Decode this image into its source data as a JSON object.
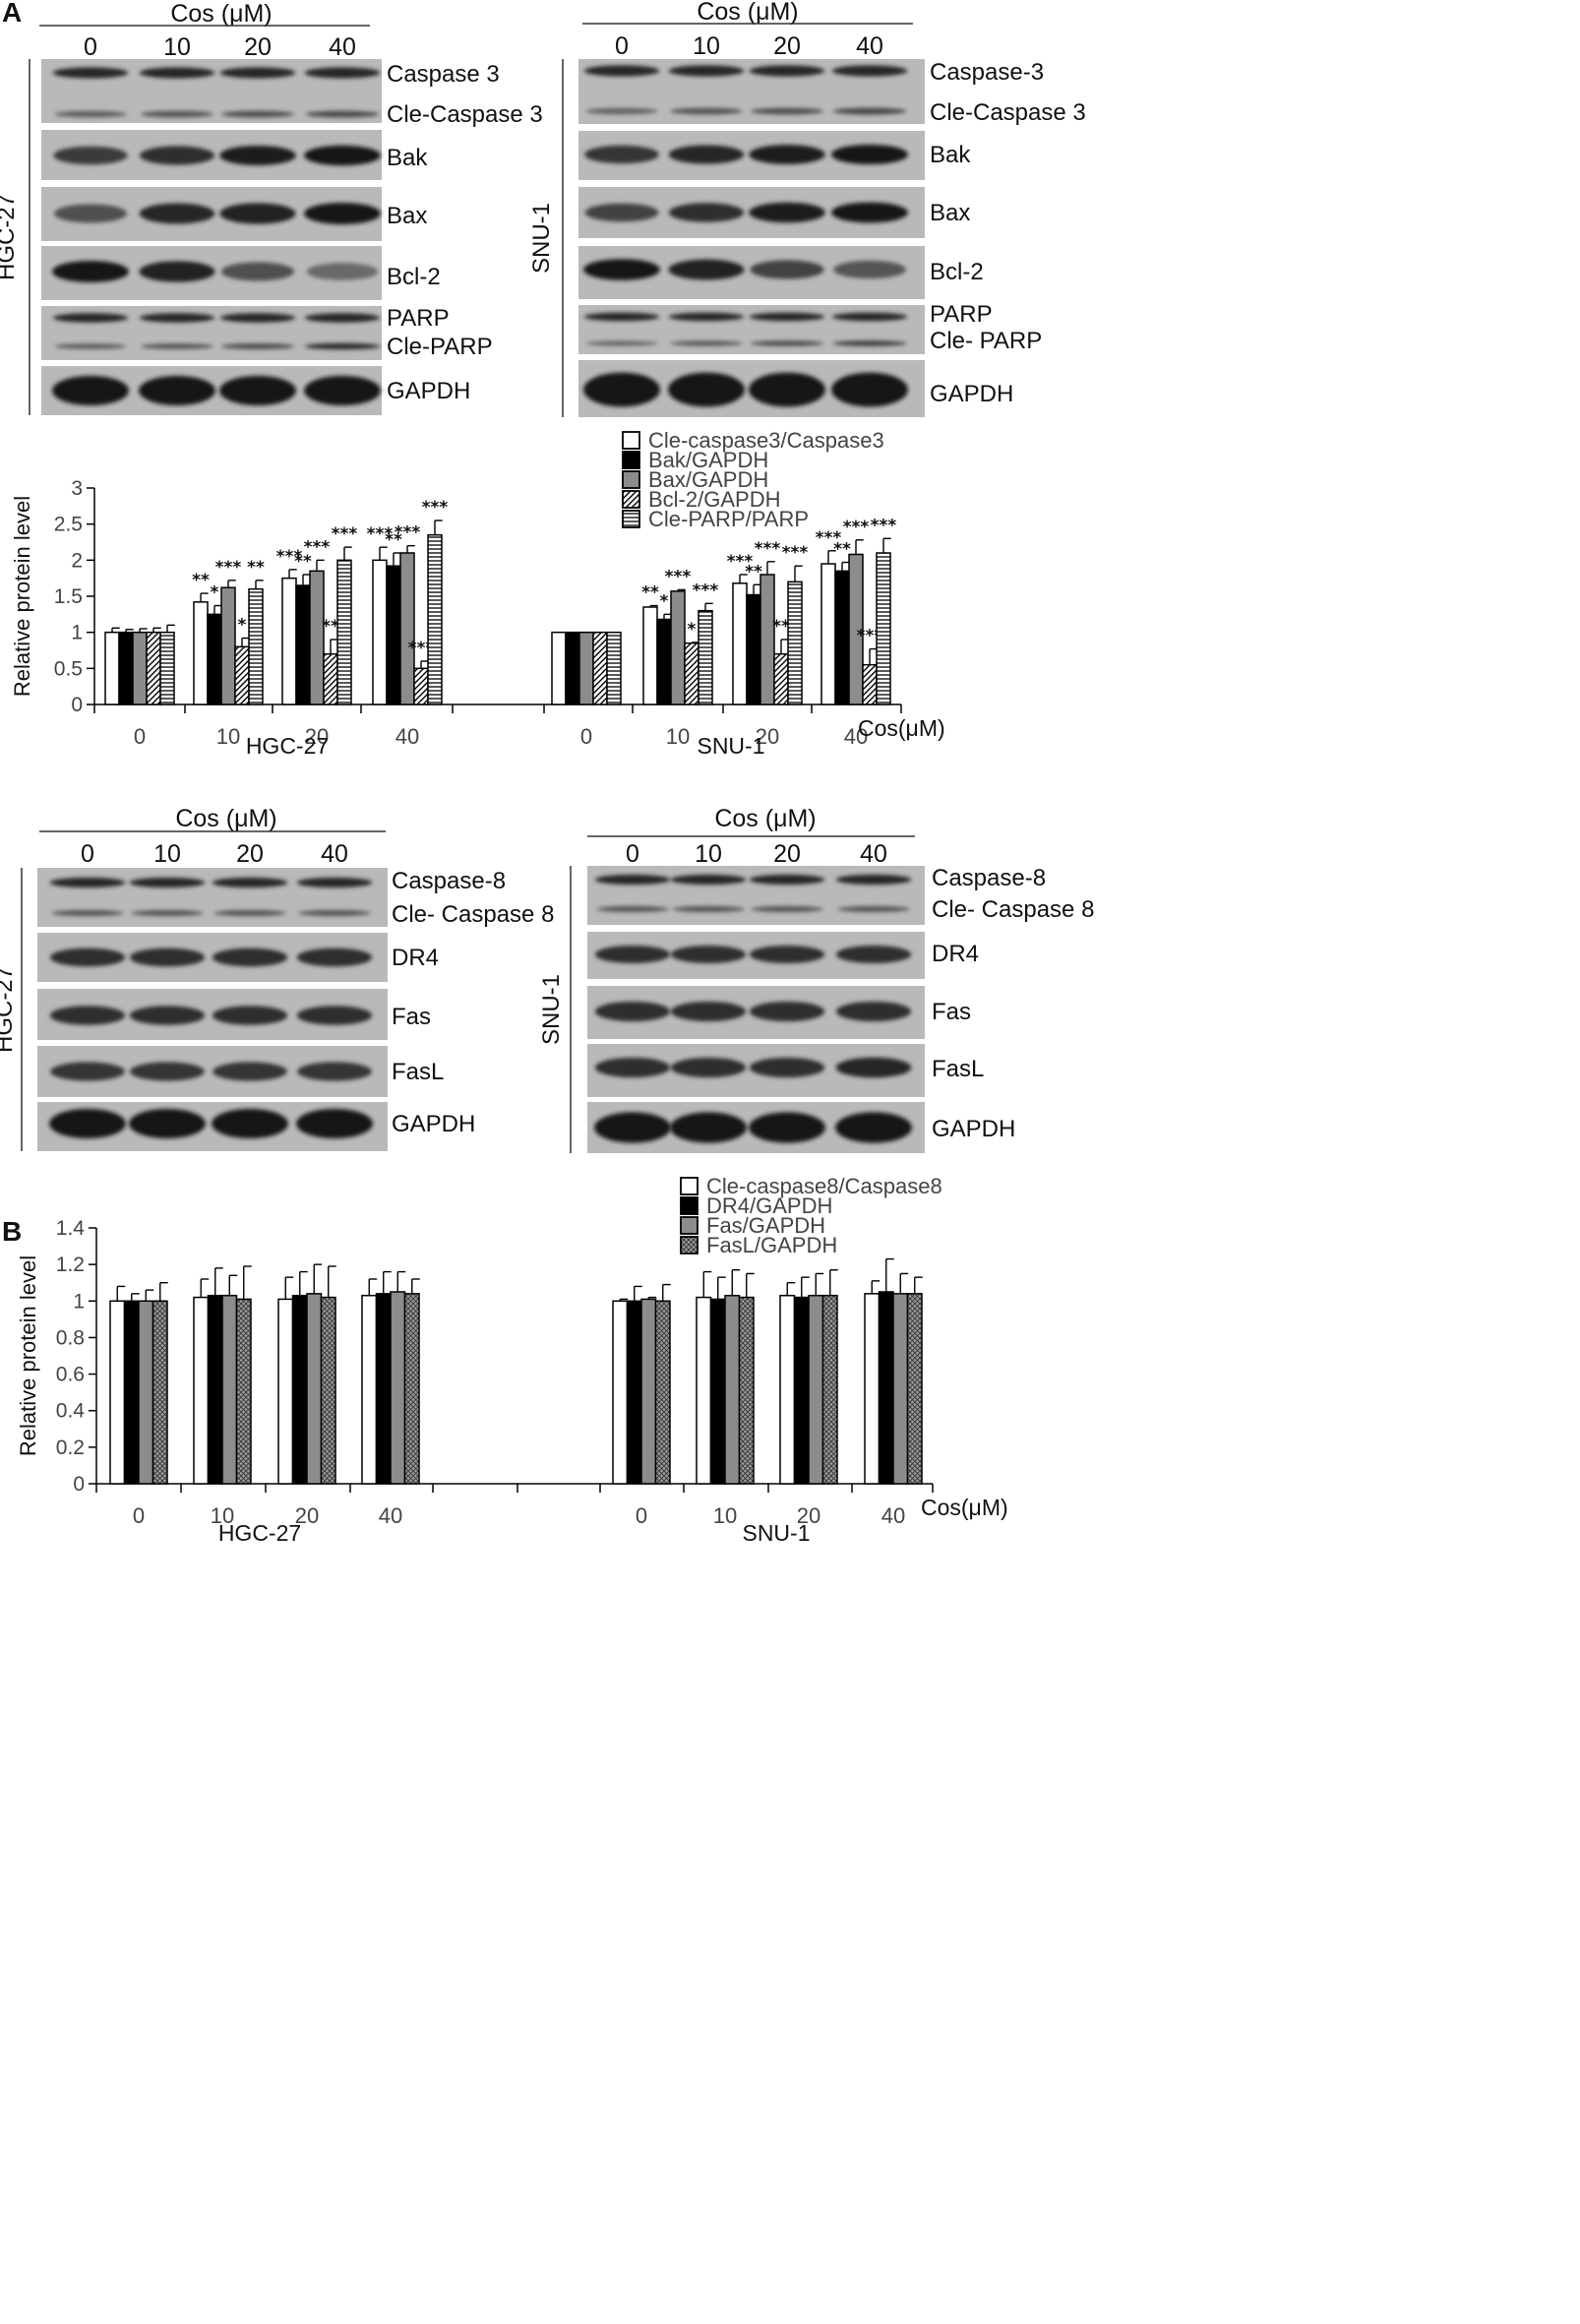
{
  "figure": {
    "panel_a_letter": "A",
    "panel_b_letter": "B"
  },
  "panel_a": {
    "blot_left": {
      "header": "Cos  (μM)",
      "doses": [
        "0",
        "10",
        "20",
        "40"
      ],
      "cell_line": "HGC-27",
      "rows": [
        {
          "labels": [
            "Caspase 3",
            "Cle-Caspase 3"
          ],
          "bands": [
            [
              0.85,
              0.85,
              0.85,
              0.85
            ],
            [
              0.45,
              0.5,
              0.55,
              0.6
            ]
          ]
        },
        {
          "labels": [
            "Bak"
          ],
          "bands": [
            [
              0.7,
              0.8,
              0.95,
              1.0
            ]
          ]
        },
        {
          "labels": [
            "Bax"
          ],
          "bands": [
            [
              0.55,
              0.85,
              0.9,
              1.0
            ]
          ]
        },
        {
          "labels": [
            "Bcl-2"
          ],
          "bands": [
            [
              1.0,
              0.9,
              0.55,
              0.35
            ]
          ]
        },
        {
          "labels": [
            "PARP",
            "Cle-PARP"
          ],
          "bands": [
            [
              0.85,
              0.85,
              0.85,
              0.85
            ],
            [
              0.45,
              0.5,
              0.6,
              0.85
            ]
          ]
        },
        {
          "labels": [
            "GAPDH"
          ],
          "bands": [
            [
              1.0,
              1.0,
              1.0,
              1.0
            ]
          ]
        }
      ]
    },
    "blot_right": {
      "header": "Cos  (μM)",
      "doses": [
        "0",
        "10",
        "20",
        "40"
      ],
      "cell_line": "SNU-1",
      "rows": [
        {
          "labels": [
            "Caspase-3",
            "Cle-Caspase 3"
          ],
          "bands": [
            [
              0.85,
              0.85,
              0.85,
              0.85
            ],
            [
              0.4,
              0.5,
              0.55,
              0.6
            ]
          ]
        },
        {
          "labels": [
            "Bak"
          ],
          "bands": [
            [
              0.75,
              0.85,
              0.95,
              1.0
            ]
          ]
        },
        {
          "labels": [
            "Bax"
          ],
          "bands": [
            [
              0.65,
              0.8,
              0.95,
              1.0
            ]
          ]
        },
        {
          "labels": [
            "Bcl-2"
          ],
          "bands": [
            [
              1.0,
              0.9,
              0.65,
              0.5
            ]
          ]
        },
        {
          "labels": [
            "PARP",
            "Cle- PARP"
          ],
          "bands": [
            [
              0.85,
              0.85,
              0.85,
              0.85
            ],
            [
              0.4,
              0.5,
              0.6,
              0.7
            ]
          ]
        },
        {
          "labels": [
            "GAPDH"
          ],
          "bands": [
            [
              1.0,
              1.0,
              1.0,
              1.0
            ]
          ]
        }
      ]
    }
  },
  "panel_b": {
    "blot_left": {
      "header": "Cos  (μM)",
      "doses": [
        "0",
        "10",
        "20",
        "40"
      ],
      "cell_line": "HGC-27",
      "rows": [
        {
          "labels": [
            "Caspase-8",
            "Cle- Caspase 8"
          ],
          "bands": [
            [
              0.85,
              0.85,
              0.85,
              0.85
            ],
            [
              0.5,
              0.5,
              0.5,
              0.5
            ]
          ]
        },
        {
          "labels": [
            "DR4"
          ],
          "bands": [
            [
              0.8,
              0.8,
              0.8,
              0.8
            ]
          ]
        },
        {
          "labels": [
            "Fas"
          ],
          "bands": [
            [
              0.8,
              0.8,
              0.8,
              0.8
            ]
          ]
        },
        {
          "labels": [
            "FasL"
          ],
          "bands": [
            [
              0.75,
              0.75,
              0.75,
              0.75
            ]
          ]
        },
        {
          "labels": [
            "GAPDH"
          ],
          "bands": [
            [
              1.0,
              1.0,
              1.0,
              1.0
            ]
          ]
        }
      ]
    },
    "blot_right": {
      "header": "Cos (μM)",
      "doses": [
        "0",
        "10",
        "20",
        "40"
      ],
      "cell_line": "SNU-1",
      "rows": [
        {
          "labels": [
            "Caspase-8",
            "Cle- Caspase 8"
          ],
          "bands": [
            [
              0.85,
              0.85,
              0.85,
              0.85
            ],
            [
              0.5,
              0.5,
              0.5,
              0.5
            ]
          ]
        },
        {
          "labels": [
            "DR4"
          ],
          "bands": [
            [
              0.8,
              0.8,
              0.8,
              0.8
            ]
          ]
        },
        {
          "labels": [
            "Fas"
          ],
          "bands": [
            [
              0.8,
              0.8,
              0.8,
              0.8
            ]
          ]
        },
        {
          "labels": [
            "FasL"
          ],
          "bands": [
            [
              0.8,
              0.8,
              0.8,
              0.85
            ]
          ]
        },
        {
          "labels": [
            "GAPDH"
          ],
          "bands": [
            [
              1.0,
              1.0,
              1.0,
              1.0
            ]
          ]
        }
      ]
    }
  },
  "chart_data": [
    {
      "type": "bar",
      "ylabel": "Relative protein level",
      "ylim": [
        0,
        3
      ],
      "yticks": [
        "0",
        "0.5",
        "1",
        "1.5",
        "2",
        "2.5",
        "3"
      ],
      "ytick_values": [
        0,
        0.5,
        1,
        1.5,
        2,
        2.5,
        3
      ],
      "categories": [
        "0",
        "10",
        "20",
        "40"
      ],
      "groups": [
        "HGC-27",
        "SNU-1"
      ],
      "x_unit_label": "Cos(μM)",
      "legend_position": "top-center",
      "series": [
        {
          "name": "Cle-caspase3/Caspase3",
          "fill": "white",
          "values": {
            "HGC-27": [
              1.0,
              1.42,
              1.75,
              2.0
            ],
            "SNU-1": [
              1.0,
              1.35,
              1.68,
              1.95
            ]
          },
          "errors": {
            "HGC-27": [
              0.06,
              0.12,
              0.12,
              0.18
            ],
            "SNU-1": [
              0,
              0.02,
              0.12,
              0.18
            ]
          },
          "significance": {
            "HGC-27": [
              "",
              "**",
              "***",
              "***"
            ],
            "SNU-1": [
              "",
              "**",
              "***",
              "***"
            ]
          }
        },
        {
          "name": "Bak/GAPDH",
          "fill": "black",
          "values": {
            "HGC-27": [
              1.0,
              1.25,
              1.65,
              1.92
            ],
            "SNU-1": [
              1.0,
              1.18,
              1.52,
              1.85
            ]
          },
          "errors": {
            "HGC-27": [
              0.04,
              0.12,
              0.15,
              0.18
            ],
            "SNU-1": [
              0,
              0.07,
              0.14,
              0.12
            ]
          },
          "significance": {
            "HGC-27": [
              "",
              "*",
              "**",
              "**"
            ],
            "SNU-1": [
              "",
              "*",
              "**",
              "**"
            ]
          }
        },
        {
          "name": "Bax/GAPDH",
          "fill": "gray",
          "values": {
            "HGC-27": [
              1.0,
              1.62,
              1.85,
              2.1
            ],
            "SNU-1": [
              1.0,
              1.57,
              1.8,
              2.08
            ]
          },
          "errors": {
            "HGC-27": [
              0.05,
              0.1,
              0.15,
              0.1
            ],
            "SNU-1": [
              0,
              0.02,
              0.18,
              0.2
            ]
          },
          "significance": {
            "HGC-27": [
              "",
              "***",
              "***",
              "***"
            ],
            "SNU-1": [
              "",
              "***",
              "***",
              "***"
            ]
          }
        },
        {
          "name": "Bcl-2/GAPDH",
          "fill": "diagonal",
          "values": {
            "HGC-27": [
              1.0,
              0.8,
              0.7,
              0.5
            ],
            "SNU-1": [
              1.0,
              0.85,
              0.7,
              0.55
            ]
          },
          "errors": {
            "HGC-27": [
              0.06,
              0.12,
              0.2,
              0.1
            ],
            "SNU-1": [
              0,
              0.01,
              0.2,
              0.22
            ]
          },
          "significance": {
            "HGC-27": [
              "",
              "*",
              "**",
              "***"
            ],
            "SNU-1": [
              "",
              "*",
              "**",
              "***"
            ]
          }
        },
        {
          "name": "Cle-PARP/PARP",
          "fill": "horizontal",
          "values": {
            "HGC-27": [
              1.0,
              1.6,
              2.0,
              2.35
            ],
            "SNU-1": [
              1.0,
              1.3,
              1.7,
              2.1
            ]
          },
          "errors": {
            "HGC-27": [
              0.1,
              0.12,
              0.18,
              0.2
            ],
            "SNU-1": [
              0,
              0.1,
              0.22,
              0.2
            ]
          },
          "significance": {
            "HGC-27": [
              "",
              "**",
              "***",
              "***"
            ],
            "SNU-1": [
              "",
              "***",
              "***",
              "***"
            ]
          }
        }
      ]
    },
    {
      "type": "bar",
      "ylabel": "Relative protein level",
      "ylim": [
        0,
        1.4
      ],
      "yticks": [
        "0",
        "0.2",
        "0.4",
        "0.6",
        "0.8",
        "1",
        "1.2",
        "1.4"
      ],
      "ytick_values": [
        0,
        0.2,
        0.4,
        0.6,
        0.8,
        1,
        1.2,
        1.4
      ],
      "categories": [
        "0",
        "10",
        "20",
        "40"
      ],
      "groups": [
        "HGC-27",
        "SNU-1"
      ],
      "x_unit_label": "Cos(μM)",
      "legend_position": "top-center",
      "series": [
        {
          "name": "Cle-caspase8/Caspase8",
          "fill": "white",
          "values": {
            "HGC-27": [
              1.0,
              1.02,
              1.01,
              1.03
            ],
            "SNU-1": [
              1.0,
              1.02,
              1.03,
              1.04
            ]
          },
          "errors": {
            "HGC-27": [
              0.08,
              0.1,
              0.12,
              0.09
            ],
            "SNU-1": [
              0.01,
              0.14,
              0.07,
              0.07
            ]
          },
          "significance": {
            "HGC-27": [
              "",
              "",
              "",
              ""
            ],
            "SNU-1": [
              "",
              "",
              "",
              ""
            ]
          }
        },
        {
          "name": "DR4/GAPDH",
          "fill": "black",
          "values": {
            "HGC-27": [
              1.0,
              1.03,
              1.03,
              1.04
            ],
            "SNU-1": [
              1.0,
              1.01,
              1.02,
              1.05
            ]
          },
          "errors": {
            "HGC-27": [
              0.04,
              0.15,
              0.13,
              0.12
            ],
            "SNU-1": [
              0.08,
              0.12,
              0.11,
              0.18
            ]
          },
          "significance": {
            "HGC-27": [
              "",
              "",
              "",
              ""
            ],
            "SNU-1": [
              "",
              "",
              "",
              ""
            ]
          }
        },
        {
          "name": "Fas/GAPDH",
          "fill": "gray",
          "values": {
            "HGC-27": [
              1.0,
              1.03,
              1.04,
              1.05
            ],
            "SNU-1": [
              1.01,
              1.03,
              1.03,
              1.04
            ]
          },
          "errors": {
            "HGC-27": [
              0.06,
              0.11,
              0.16,
              0.11
            ],
            "SNU-1": [
              0.01,
              0.14,
              0.12,
              0.11
            ]
          },
          "significance": {
            "HGC-27": [
              "",
              "",
              "",
              ""
            ],
            "SNU-1": [
              "",
              "",
              "",
              ""
            ]
          }
        },
        {
          "name": "FasL/GAPDH",
          "fill": "crosshatch",
          "values": {
            "HGC-27": [
              1.0,
              1.01,
              1.02,
              1.04
            ],
            "SNU-1": [
              1.0,
              1.02,
              1.03,
              1.04
            ]
          },
          "errors": {
            "HGC-27": [
              0.1,
              0.18,
              0.17,
              0.08
            ],
            "SNU-1": [
              0.09,
              0.13,
              0.14,
              0.09
            ]
          },
          "significance": {
            "HGC-27": [
              "",
              "",
              "",
              ""
            ],
            "SNU-1": [
              "",
              "",
              "",
              ""
            ]
          }
        }
      ]
    }
  ]
}
